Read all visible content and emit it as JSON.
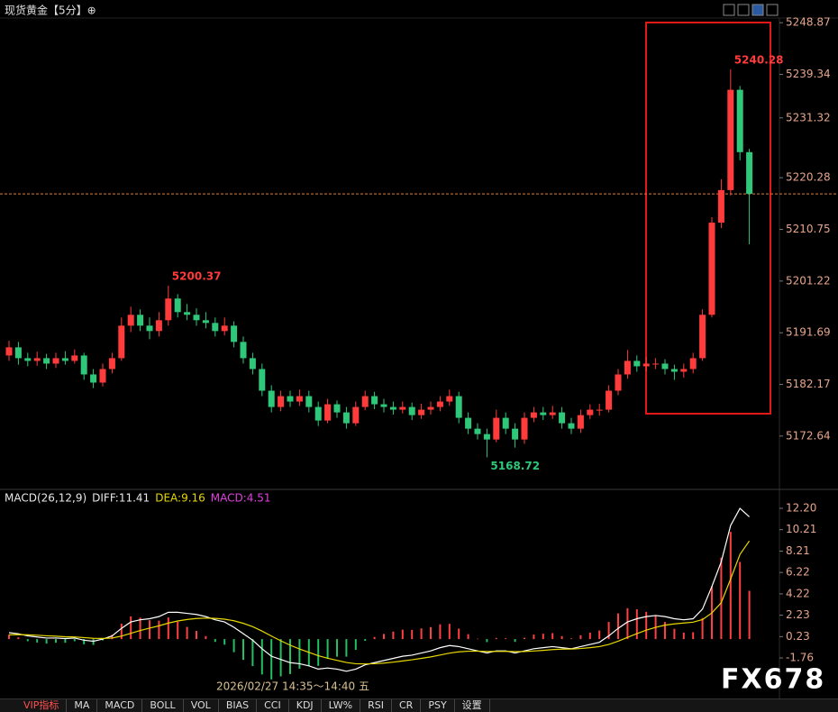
{
  "chart_data": [
    {
      "type": "candlestick",
      "title": "现货黄金【5分】⊕",
      "up_color": "#ff3b3b",
      "down_color": "#2fc87a",
      "ylim": [
        5163.3,
        5249.4
      ],
      "yticks": [
        5248.87,
        5239.34,
        5231.32,
        5220.28,
        5210.75,
        5201.22,
        5191.69,
        5182.17,
        5172.64
      ],
      "annotations": [
        5200.37,
        5240.28,
        5168.72
      ],
      "ohlc": [
        [
          5187.5,
          5190.2,
          5186.5,
          5189
        ],
        [
          5189,
          5190,
          5185.8,
          5187
        ],
        [
          5187,
          5188,
          5185.5,
          5186.5
        ],
        [
          5186.5,
          5188.2,
          5185.6,
          5187
        ],
        [
          5187,
          5187.8,
          5185,
          5186
        ],
        [
          5186,
          5188,
          5185.2,
          5187
        ],
        [
          5187,
          5188.3,
          5185.8,
          5186.5
        ],
        [
          5186.5,
          5188.6,
          5186,
          5187.5
        ],
        [
          5187.5,
          5188,
          5183,
          5184
        ],
        [
          5184,
          5185,
          5181.5,
          5182.5
        ],
        [
          5182.5,
          5186,
          5181.8,
          5185
        ],
        [
          5185,
          5188,
          5184.2,
          5187
        ],
        [
          5187,
          5194.5,
          5186.5,
          5193
        ],
        [
          5193,
          5196.5,
          5191.8,
          5195
        ],
        [
          5195,
          5196,
          5192,
          5193
        ],
        [
          5193,
          5194.5,
          5190.5,
          5192
        ],
        [
          5192,
          5195.5,
          5191,
          5194
        ],
        [
          5194,
          5200.37,
          5193,
          5198
        ],
        [
          5198,
          5198.8,
          5194.5,
          5195.5
        ],
        [
          5195.5,
          5197,
          5194,
          5195
        ],
        [
          5195,
          5196.2,
          5193,
          5194
        ],
        [
          5194,
          5195.5,
          5192.5,
          5193.5
        ],
        [
          5193.5,
          5194.5,
          5191,
          5192
        ],
        [
          5192,
          5194.5,
          5191.2,
          5193
        ],
        [
          5193,
          5193.8,
          5189,
          5190
        ],
        [
          5190,
          5191,
          5186,
          5187
        ],
        [
          5187,
          5188,
          5184,
          5185
        ],
        [
          5185,
          5186,
          5180,
          5181
        ],
        [
          5181,
          5182,
          5177,
          5178
        ],
        [
          5178,
          5181,
          5177.2,
          5180
        ],
        [
          5180,
          5181,
          5178,
          5179
        ],
        [
          5179,
          5181.2,
          5178.2,
          5180
        ],
        [
          5180,
          5181,
          5177,
          5178
        ],
        [
          5178,
          5179,
          5174.5,
          5175.5
        ],
        [
          5175.5,
          5179.5,
          5175,
          5178.5
        ],
        [
          5178.5,
          5179.2,
          5176,
          5177
        ],
        [
          5177,
          5178,
          5174,
          5175
        ],
        [
          5175,
          5179,
          5174.5,
          5178
        ],
        [
          5178,
          5181,
          5177.4,
          5180
        ],
        [
          5180,
          5180.8,
          5177.6,
          5178.5
        ],
        [
          5178.5,
          5179.5,
          5177,
          5178
        ],
        [
          5178,
          5179,
          5176.6,
          5177.5
        ],
        [
          5177.5,
          5179,
          5176.8,
          5178
        ],
        [
          5178,
          5178.8,
          5175.6,
          5176.5
        ],
        [
          5176.5,
          5178.6,
          5175.8,
          5177.5
        ],
        [
          5177.5,
          5179,
          5176.6,
          5178
        ],
        [
          5178,
          5180,
          5177.2,
          5179
        ],
        [
          5179,
          5181.2,
          5178.2,
          5180
        ],
        [
          5180,
          5180.8,
          5175,
          5176
        ],
        [
          5176,
          5177,
          5173,
          5174
        ],
        [
          5174,
          5175,
          5172,
          5173
        ],
        [
          5173,
          5174,
          5168.72,
          5172
        ],
        [
          5172,
          5177.5,
          5171.5,
          5176
        ],
        [
          5176,
          5177,
          5173,
          5174
        ],
        [
          5174,
          5175,
          5170.5,
          5172
        ],
        [
          5172,
          5177,
          5171.2,
          5176
        ],
        [
          5176,
          5178,
          5175.2,
          5177
        ],
        [
          5177,
          5178,
          5175.6,
          5176.5
        ],
        [
          5176.5,
          5178.2,
          5175.8,
          5177
        ],
        [
          5177,
          5178,
          5174,
          5175
        ],
        [
          5175,
          5176,
          5173,
          5174
        ],
        [
          5174,
          5177.5,
          5173.2,
          5176.5
        ],
        [
          5176.5,
          5178.5,
          5175.8,
          5177.5
        ],
        [
          5177.5,
          5178.6,
          5176.4,
          5177.5
        ],
        [
          5177.5,
          5182,
          5177,
          5181
        ],
        [
          5181,
          5185,
          5180.2,
          5184
        ],
        [
          5184,
          5188.5,
          5183.2,
          5186.5
        ],
        [
          5186.5,
          5187.5,
          5184.5,
          5185.5
        ],
        [
          5185.5,
          5187.2,
          5184.6,
          5186
        ],
        [
          5186,
          5187,
          5185,
          5186
        ],
        [
          5186,
          5186.8,
          5184,
          5185
        ],
        [
          5185,
          5185.8,
          5183,
          5184.5
        ],
        [
          5184.5,
          5186,
          5183.4,
          5185
        ],
        [
          5185,
          5188,
          5184.2,
          5187
        ],
        [
          5187,
          5196,
          5186.5,
          5195
        ],
        [
          5195,
          5213,
          5194.5,
          5212
        ],
        [
          5212,
          5220,
          5211,
          5218
        ],
        [
          5218,
          5240.28,
          5217,
          5236.5
        ],
        [
          5236.5,
          5237.2,
          5223.5,
          5225
        ],
        [
          5225,
          5225.6,
          5208,
          5217.3
        ]
      ]
    },
    {
      "type": "macd",
      "legend": [
        {
          "label": "MACD(26,12,9)",
          "color": "#e8e8e8"
        },
        {
          "label": "DIFF:11.41",
          "color": "#e8e8e8"
        },
        {
          "label": "DEA:9.16",
          "color": "#e8d800"
        },
        {
          "label": "MACD:4.51",
          "color": "#e040e0"
        }
      ],
      "ylim": [
        -4.7,
        13.8
      ],
      "yticks": [
        {
          "value": 12.2,
          "label": "12.20"
        },
        10.21,
        8.21,
        6.22,
        4.22,
        2.23,
        0.23,
        -1.76
      ],
      "series": [
        {
          "color": "#ffffff",
          "values": [
            0.6,
            0.5,
            0.3,
            0.2,
            0.1,
            0.1,
            0.05,
            0.1,
            -0.1,
            -0.2,
            0.0,
            0.3,
            1.0,
            1.6,
            1.8,
            1.9,
            2.1,
            2.5,
            2.5,
            2.4,
            2.3,
            2.1,
            1.8,
            1.6,
            1.1,
            0.5,
            -0.1,
            -0.9,
            -1.6,
            -1.9,
            -2.2,
            -2.3,
            -2.5,
            -2.8,
            -2.7,
            -2.8,
            -3.0,
            -2.8,
            -2.4,
            -2.2,
            -2.0,
            -1.8,
            -1.6,
            -1.5,
            -1.3,
            -1.1,
            -0.8,
            -0.6,
            -0.7,
            -0.9,
            -1.1,
            -1.3,
            -1.1,
            -1.1,
            -1.3,
            -1.1,
            -0.9,
            -0.8,
            -0.7,
            -0.8,
            -0.9,
            -0.7,
            -0.5,
            -0.3,
            0.3,
            1.0,
            1.6,
            1.9,
            2.1,
            2.2,
            2.1,
            1.9,
            1.8,
            1.9,
            2.8,
            4.9,
            7.2,
            10.6,
            12.2,
            11.41
          ]
        },
        {
          "color": "#e8d800",
          "values": [
            0.4,
            0.42,
            0.4,
            0.36,
            0.31,
            0.27,
            0.22,
            0.2,
            0.14,
            0.07,
            0.06,
            0.1,
            0.28,
            0.54,
            0.8,
            1.02,
            1.24,
            1.49,
            1.69,
            1.83,
            1.92,
            1.96,
            1.93,
            1.86,
            1.71,
            1.47,
            1.16,
            0.75,
            0.28,
            -0.16,
            -0.57,
            -0.92,
            -1.24,
            -1.55,
            -1.78,
            -1.98,
            -2.18,
            -2.3,
            -2.32,
            -2.3,
            -2.24,
            -2.15,
            -2.04,
            -1.93,
            -1.8,
            -1.66,
            -1.49,
            -1.31,
            -1.19,
            -1.13,
            -1.12,
            -1.16,
            -1.15,
            -1.14,
            -1.17,
            -1.16,
            -1.11,
            -1.05,
            -0.98,
            -0.94,
            -0.93,
            -0.88,
            -0.8,
            -0.7,
            -0.5,
            -0.2,
            0.16,
            0.51,
            0.83,
            1.1,
            1.3,
            1.42,
            1.5,
            1.58,
            1.82,
            2.44,
            3.39,
            5.6,
            7.9,
            9.16
          ]
        }
      ],
      "histogram": {
        "up_color": "#ff4040",
        "down_color": "#22c060",
        "values": [
          0.4,
          0.16,
          -0.2,
          -0.32,
          -0.42,
          -0.34,
          -0.34,
          -0.2,
          -0.48,
          -0.54,
          -0.12,
          0.4,
          1.44,
          2.12,
          2.0,
          1.76,
          1.72,
          2.02,
          1.62,
          1.14,
          0.76,
          0.28,
          -0.26,
          -0.52,
          -1.22,
          -1.94,
          -2.52,
          -3.3,
          -3.76,
          -3.48,
          -3.26,
          -2.76,
          -2.52,
          -2.5,
          -1.84,
          -1.64,
          -1.64,
          -1.0,
          -0.16,
          0.2,
          0.48,
          0.7,
          0.88,
          0.86,
          1.0,
          1.12,
          1.38,
          1.42,
          0.98,
          0.46,
          0.04,
          -0.28,
          0.1,
          0.08,
          -0.26,
          0.12,
          0.42,
          0.5,
          0.56,
          0.28,
          0.06,
          0.36,
          0.6,
          0.8,
          1.6,
          2.4,
          2.88,
          2.78,
          2.54,
          2.2,
          1.6,
          0.96,
          0.6,
          0.64,
          1.96,
          4.92,
          7.6,
          10.0,
          7.2,
          4.51
        ]
      }
    }
  ],
  "cursor_time": "2026/02/27 14:35～14:40 五",
  "watermark": "FX678",
  "toolbar": {
    "tabs": [
      "VIP指标",
      "MA",
      "MACD",
      "BOLL",
      "VOL",
      "BIAS",
      "CCI",
      "KDJ",
      "LW%",
      "RSI",
      "CR",
      "PSY",
      "设置"
    ]
  }
}
